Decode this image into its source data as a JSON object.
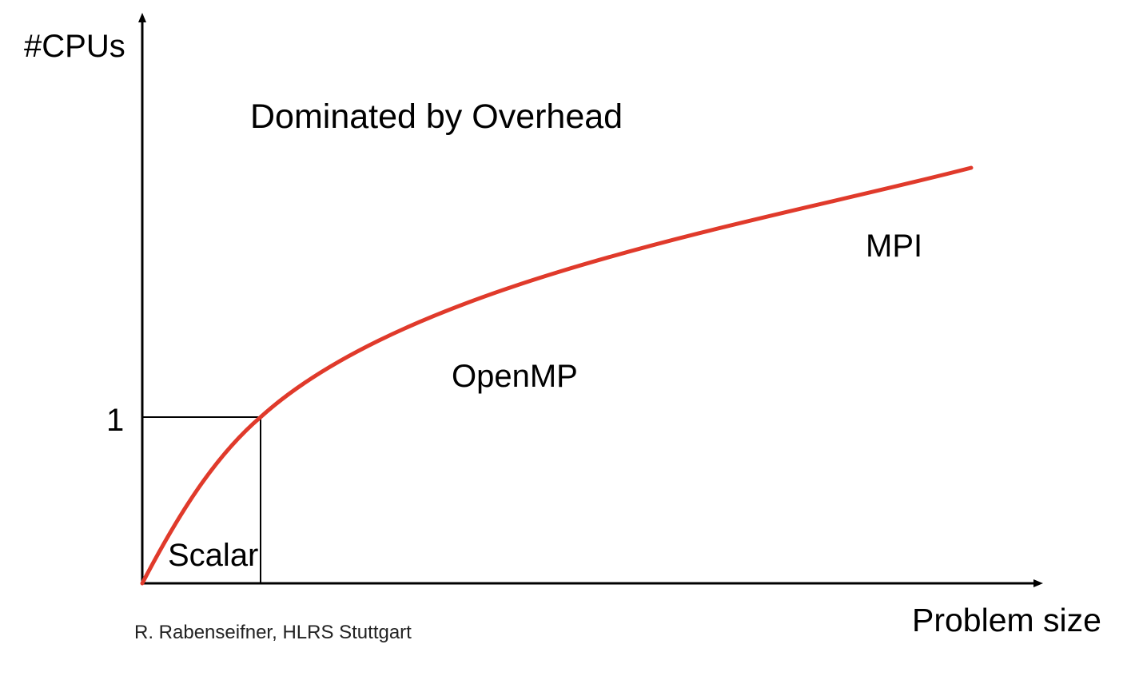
{
  "diagram": {
    "y_axis_label": "#CPUs",
    "x_axis_label": "Problem size",
    "y_tick_label": "1",
    "regions": {
      "overhead": "Dominated by Overhead",
      "mpi": "MPI",
      "openmp": "OpenMP",
      "scalar": "Scalar"
    },
    "credit": "R. Rabenseifner, HLRS Stuttgart"
  },
  "colors": {
    "curve": "#e03a2b",
    "axes": "#000000",
    "text": "#000000"
  }
}
